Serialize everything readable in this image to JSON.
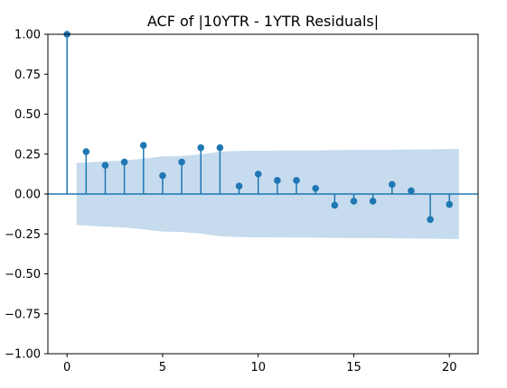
{
  "chart_data": {
    "type": "scatter",
    "subtype": "acf-stem",
    "title": "ACF of |10YTR - 1YTR Residuals|",
    "xlabel": "",
    "ylabel": "",
    "xlim": [
      -1,
      21.5
    ],
    "ylim": [
      -1.0,
      1.0
    ],
    "x_ticks": [
      0,
      5,
      10,
      15,
      20
    ],
    "y_ticks": [
      1.0,
      0.75,
      0.5,
      0.25,
      0.0,
      -0.25,
      -0.5,
      -0.75,
      -1.0
    ],
    "x_tick_labels": [
      "0",
      "5",
      "10",
      "15",
      "20"
    ],
    "y_tick_labels": [
      "1.00",
      "0.75",
      "0.50",
      "0.25",
      "0.00",
      "−0.25",
      "−0.50",
      "−0.75",
      "−1.00"
    ],
    "grid": false,
    "legend": "none",
    "lags": [
      0,
      1,
      2,
      3,
      4,
      5,
      6,
      7,
      8,
      9,
      10,
      11,
      12,
      13,
      14,
      15,
      16,
      17,
      18,
      19,
      20
    ],
    "acf": [
      1.0,
      0.265,
      0.18,
      0.2,
      0.305,
      0.115,
      0.2,
      0.29,
      0.29,
      0.05,
      0.125,
      0.085,
      0.085,
      0.035,
      -0.07,
      -0.045,
      -0.045,
      0.06,
      0.02,
      -0.16,
      -0.065
    ],
    "confidence_band": {
      "x": [
        0.5,
        1,
        2,
        3,
        4,
        5,
        6,
        7,
        8,
        9,
        10,
        11,
        12,
        13,
        14,
        15,
        16,
        17,
        18,
        19,
        20,
        20.5
      ],
      "upper": [
        0.195,
        0.197,
        0.205,
        0.21,
        0.222,
        0.235,
        0.238,
        0.248,
        0.265,
        0.27,
        0.271,
        0.272,
        0.273,
        0.273,
        0.275,
        0.276,
        0.276,
        0.277,
        0.278,
        0.28,
        0.282,
        0.282
      ],
      "lower": [
        -0.195,
        -0.197,
        -0.205,
        -0.21,
        -0.222,
        -0.235,
        -0.238,
        -0.248,
        -0.265,
        -0.27,
        -0.271,
        -0.272,
        -0.273,
        -0.273,
        -0.275,
        -0.276,
        -0.276,
        -0.277,
        -0.278,
        -0.28,
        -0.282,
        -0.282
      ]
    },
    "colors": {
      "stem": "#1f77b4",
      "band": "#c6dbed",
      "zero_line": "#1f77b4"
    }
  }
}
